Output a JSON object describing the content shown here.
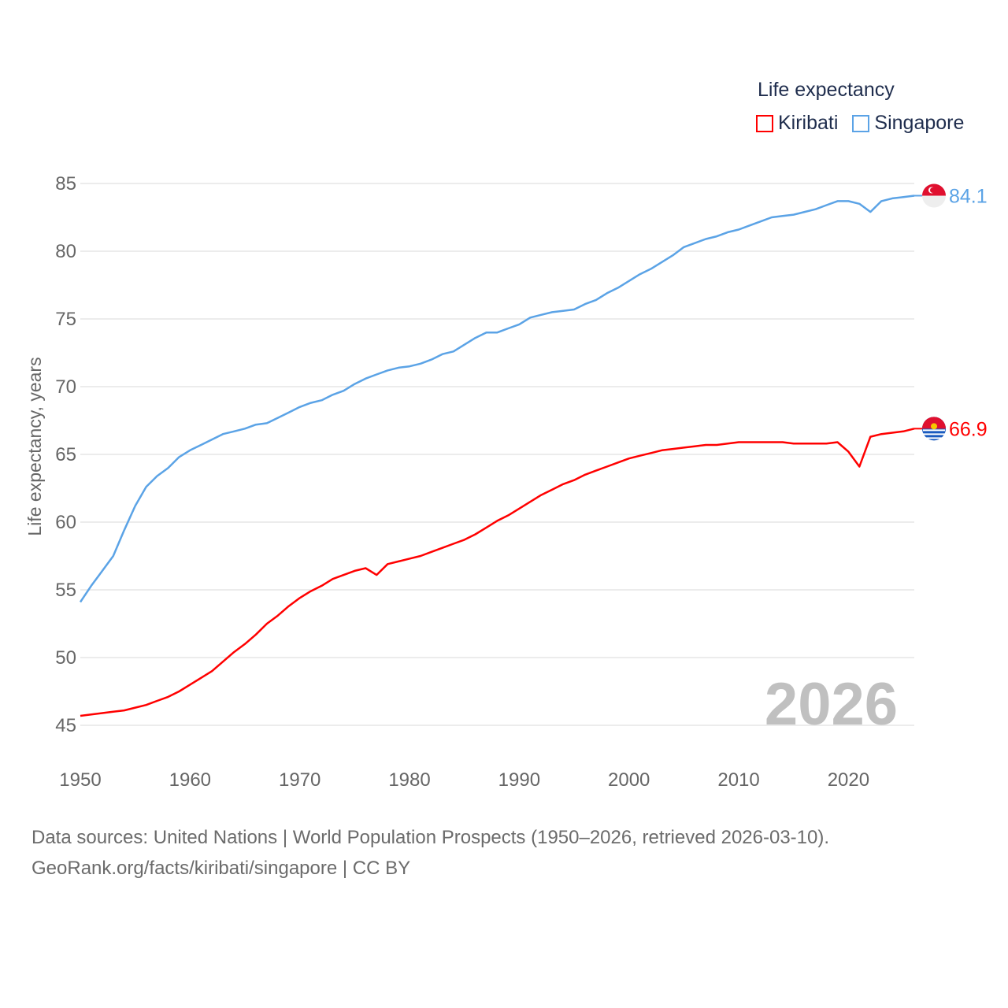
{
  "chart_data": {
    "type": "line",
    "title": "Life expectancy",
    "ylabel": "Life expectancy, years",
    "xlabel": "",
    "ylim": [
      45,
      85
    ],
    "xlim": [
      1950,
      2026
    ],
    "yticks": [
      45,
      50,
      55,
      60,
      65,
      70,
      75,
      80,
      85
    ],
    "xticks": [
      1950,
      1960,
      1970,
      1980,
      1990,
      2000,
      2010,
      2020
    ],
    "grid": true,
    "legend_placement": "top-right",
    "watermark_year": "2026",
    "x": [
      1950,
      1951,
      1952,
      1953,
      1954,
      1955,
      1956,
      1957,
      1958,
      1959,
      1960,
      1961,
      1962,
      1963,
      1964,
      1965,
      1966,
      1967,
      1968,
      1969,
      1970,
      1971,
      1972,
      1973,
      1974,
      1975,
      1976,
      1977,
      1978,
      1979,
      1980,
      1981,
      1982,
      1983,
      1984,
      1985,
      1986,
      1987,
      1988,
      1989,
      1990,
      1991,
      1992,
      1993,
      1994,
      1995,
      1996,
      1997,
      1998,
      1999,
      2000,
      2001,
      2002,
      2003,
      2004,
      2005,
      2006,
      2007,
      2008,
      2009,
      2010,
      2011,
      2012,
      2013,
      2014,
      2015,
      2016,
      2017,
      2018,
      2019,
      2020,
      2021,
      2022,
      2023,
      2024,
      2025,
      2026
    ],
    "series": [
      {
        "name": "Kiribati",
        "color": "#ff0000",
        "end_label": "66.9",
        "values": [
          45.7,
          45.8,
          45.9,
          46.0,
          46.1,
          46.3,
          46.5,
          46.8,
          47.1,
          47.5,
          48.0,
          48.5,
          49.0,
          49.7,
          50.4,
          51.0,
          51.7,
          52.5,
          53.1,
          53.8,
          54.4,
          54.9,
          55.3,
          55.8,
          56.1,
          56.4,
          56.6,
          56.1,
          56.9,
          57.1,
          57.3,
          57.5,
          57.8,
          58.1,
          58.4,
          58.7,
          59.1,
          59.6,
          60.1,
          60.5,
          61.0,
          61.5,
          62.0,
          62.4,
          62.8,
          63.1,
          63.5,
          63.8,
          64.1,
          64.4,
          64.7,
          64.9,
          65.1,
          65.3,
          65.4,
          65.5,
          65.6,
          65.7,
          65.7,
          65.8,
          65.9,
          65.9,
          65.9,
          65.9,
          65.9,
          65.8,
          65.8,
          65.8,
          65.8,
          65.9,
          65.2,
          64.1,
          66.3,
          66.5,
          66.6,
          66.7,
          66.9
        ]
      },
      {
        "name": "Singapore",
        "color": "#5ba3e6",
        "end_label": "84.1",
        "values": [
          54.1,
          55.3,
          56.4,
          57.5,
          59.4,
          61.2,
          62.6,
          63.4,
          64.0,
          64.8,
          65.3,
          65.7,
          66.1,
          66.5,
          66.7,
          66.9,
          67.2,
          67.3,
          67.7,
          68.1,
          68.5,
          68.8,
          69.0,
          69.4,
          69.7,
          70.2,
          70.6,
          70.9,
          71.2,
          71.4,
          71.5,
          71.7,
          72.0,
          72.4,
          72.6,
          73.1,
          73.6,
          74.0,
          74.0,
          74.3,
          74.6,
          75.1,
          75.3,
          75.5,
          75.6,
          75.7,
          76.1,
          76.4,
          76.9,
          77.3,
          77.8,
          78.3,
          78.7,
          79.2,
          79.7,
          80.3,
          80.6,
          80.9,
          81.1,
          81.4,
          81.6,
          81.9,
          82.2,
          82.5,
          82.6,
          82.7,
          82.9,
          83.1,
          83.4,
          83.7,
          83.7,
          83.5,
          82.9,
          83.7,
          83.9,
          84.0,
          84.1
        ]
      }
    ]
  },
  "footer": {
    "line1": "Data sources: United Nations | World Population Prospects (1950–2026, retrieved 2026-03-10).",
    "line2": "GeoRank.org/facts/kiribati/singapore | CC BY"
  }
}
